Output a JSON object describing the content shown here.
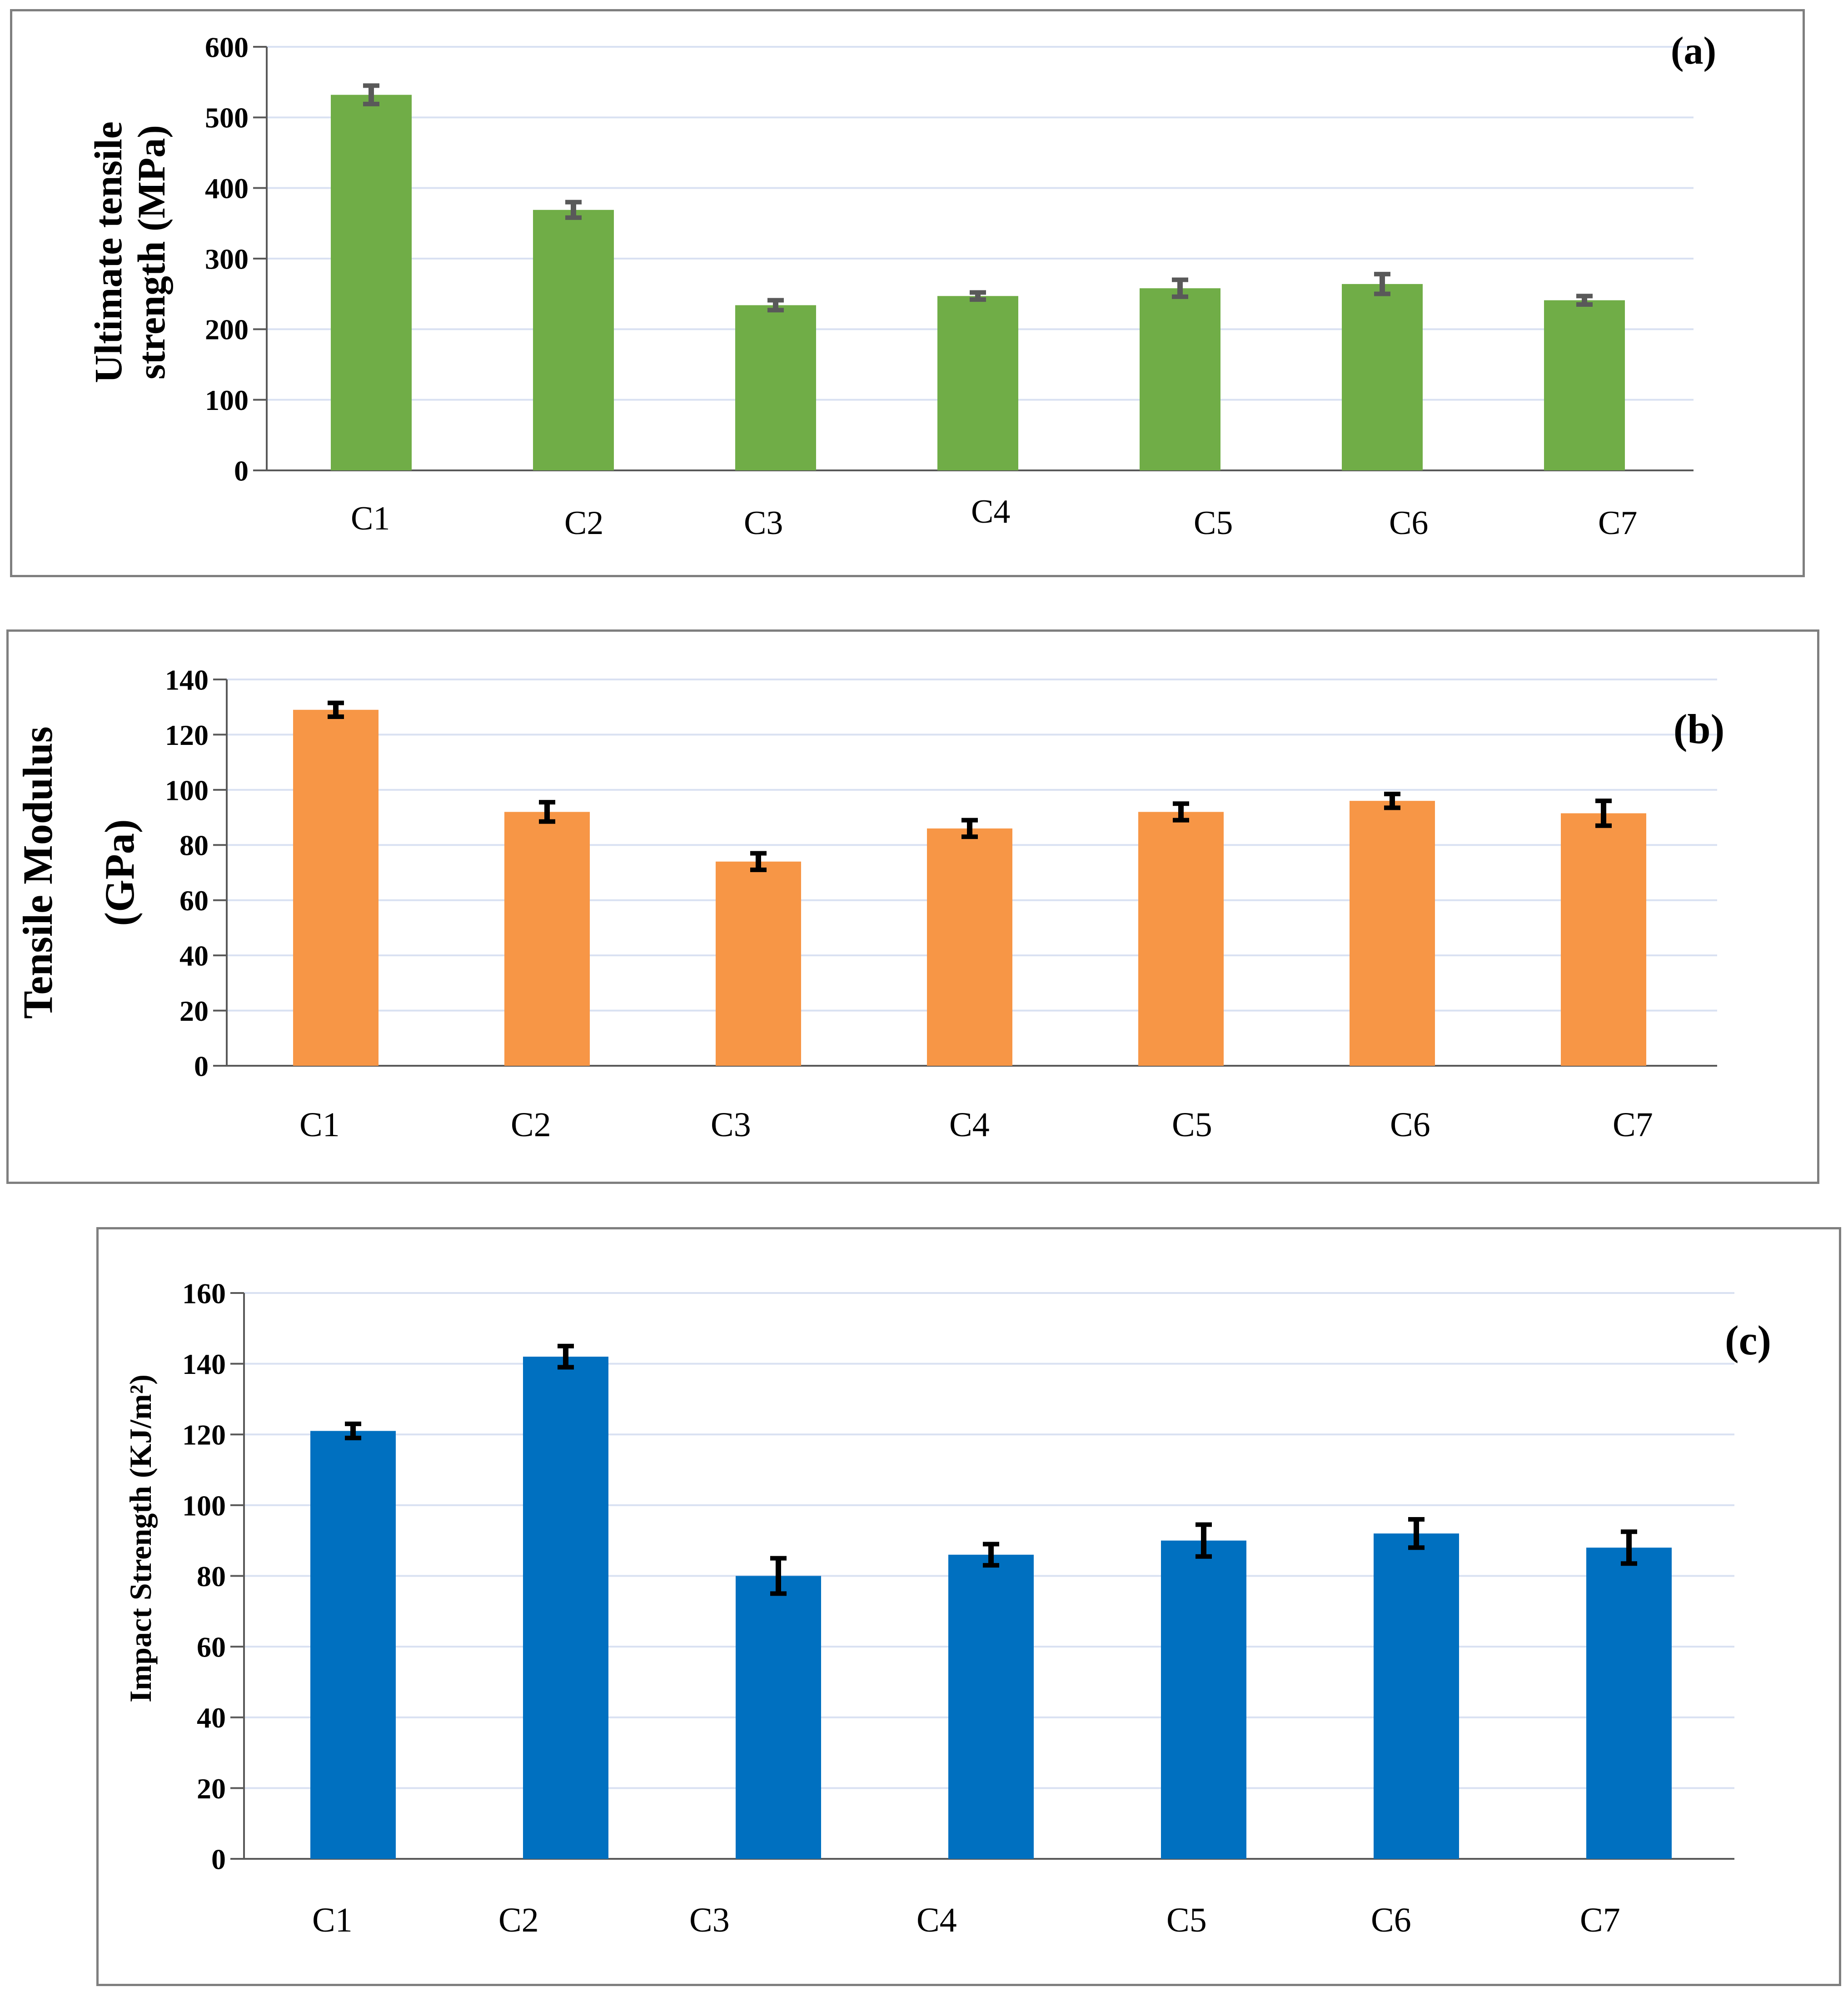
{
  "chart_data": [
    {
      "id": "a",
      "type": "bar",
      "panel_label": "(a)",
      "ylabel_line1": "Ultimate tensile",
      "ylabel_line2": "strength (MPa)",
      "categories": [
        "C1",
        "C2",
        "C3",
        "C4",
        "C5",
        "C6",
        "C7"
      ],
      "values": [
        532,
        369,
        234,
        247,
        258,
        264,
        241
      ],
      "errors": [
        13,
        11,
        7,
        5,
        12,
        14,
        6
      ],
      "ylim": [
        0,
        600
      ],
      "yticks": [
        0,
        100,
        200,
        300,
        400,
        500,
        600
      ],
      "grid": true,
      "colors": {
        "bar": "#70AD47",
        "error": "#595959",
        "grid": "#D9E1F2",
        "axis": "#595959"
      }
    },
    {
      "id": "b",
      "type": "bar",
      "panel_label": "(b)",
      "ylabel_line1": "Tensile Modulus",
      "ylabel_line2": "(GPa)",
      "categories": [
        "C1",
        "C2",
        "C3",
        "C4",
        "C5",
        "C6",
        "C7"
      ],
      "values": [
        129,
        92,
        74,
        86,
        92,
        96,
        91.5
      ],
      "errors": [
        2.5,
        3.5,
        3,
        3,
        3,
        2.5,
        4.5
      ],
      "ylim": [
        0,
        140
      ],
      "yticks": [
        0,
        20,
        40,
        60,
        80,
        100,
        120,
        140
      ],
      "grid": true,
      "colors": {
        "bar": "#F79646",
        "error": "#000000",
        "grid": "#D9E1F2",
        "axis": "#595959"
      }
    },
    {
      "id": "c",
      "type": "bar",
      "panel_label": "(c)",
      "ylabel": "Impact Strength (KJ/m²)",
      "categories": [
        "C1",
        "C2",
        "C3",
        "C4",
        "C5",
        "C6",
        "C7"
      ],
      "values": [
        121,
        142,
        80,
        86,
        90,
        92,
        88
      ],
      "errors": [
        2,
        3,
        5,
        3,
        4.5,
        4,
        4.5
      ],
      "ylim": [
        0,
        160
      ],
      "yticks": [
        0,
        20,
        40,
        60,
        80,
        100,
        120,
        140,
        160
      ],
      "grid": true,
      "colors": {
        "bar": "#0070C0",
        "error": "#000000",
        "grid": "#D9E1F2",
        "axis": "#595959"
      }
    }
  ]
}
